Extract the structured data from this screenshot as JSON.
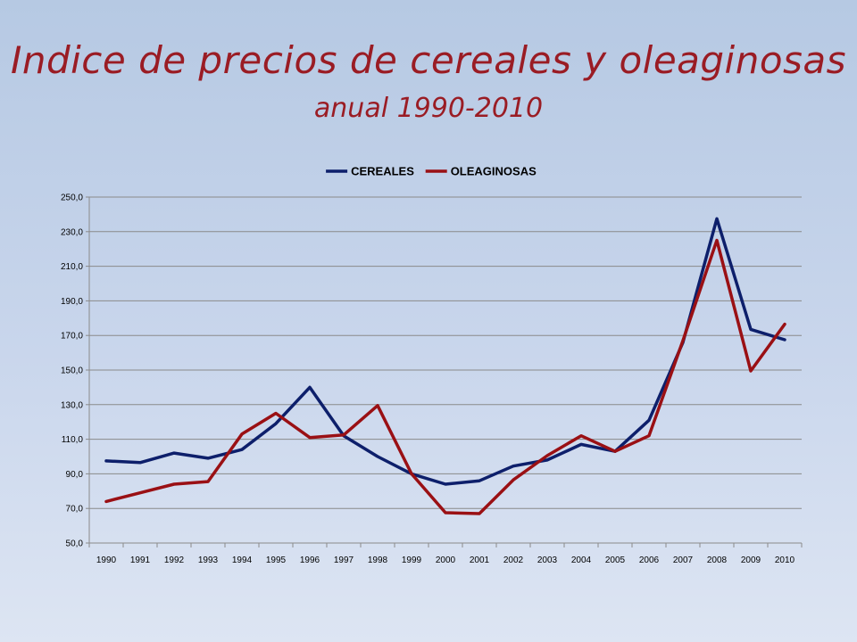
{
  "slide": {
    "title": "Indice de precios de cereales y oleaginosas",
    "subtitle": "anual 1990-2010"
  },
  "chart_data": {
    "type": "line",
    "x": [
      "1990",
      "1991",
      "1992",
      "1993",
      "1994",
      "1995",
      "1996",
      "1997",
      "1998",
      "1999",
      "2000",
      "2001",
      "2002",
      "2003",
      "2004",
      "2005",
      "2006",
      "2007",
      "2008",
      "2009",
      "2010"
    ],
    "ylim": [
      50,
      250
    ],
    "yticks": [
      "50,0",
      "70,0",
      "90,0",
      "110,0",
      "130,0",
      "150,0",
      "170,0",
      "190,0",
      "210,0",
      "230,0",
      "250,0"
    ],
    "grid": true,
    "legend_position": "top",
    "series": [
      {
        "name": "CEREALES",
        "color": "#0d1f6b",
        "values": [
          97.5,
          96.5,
          102.0,
          99.0,
          104.0,
          119.0,
          140.0,
          112.0,
          100.0,
          90.0,
          84.0,
          86.0,
          94.5,
          98.0,
          107.0,
          103.0,
          121.0,
          166.0,
          237.5,
          173.5,
          167.5
        ]
      },
      {
        "name": "OLEAGINOSAS",
        "color": "#9a1014",
        "values": [
          74.0,
          79.0,
          84.0,
          85.5,
          113.0,
          125.0,
          111.0,
          112.5,
          129.5,
          90.0,
          67.5,
          67.0,
          86.5,
          100.5,
          112.0,
          103.0,
          112.0,
          167.0,
          225.0,
          149.5,
          176.5
        ]
      }
    ]
  }
}
